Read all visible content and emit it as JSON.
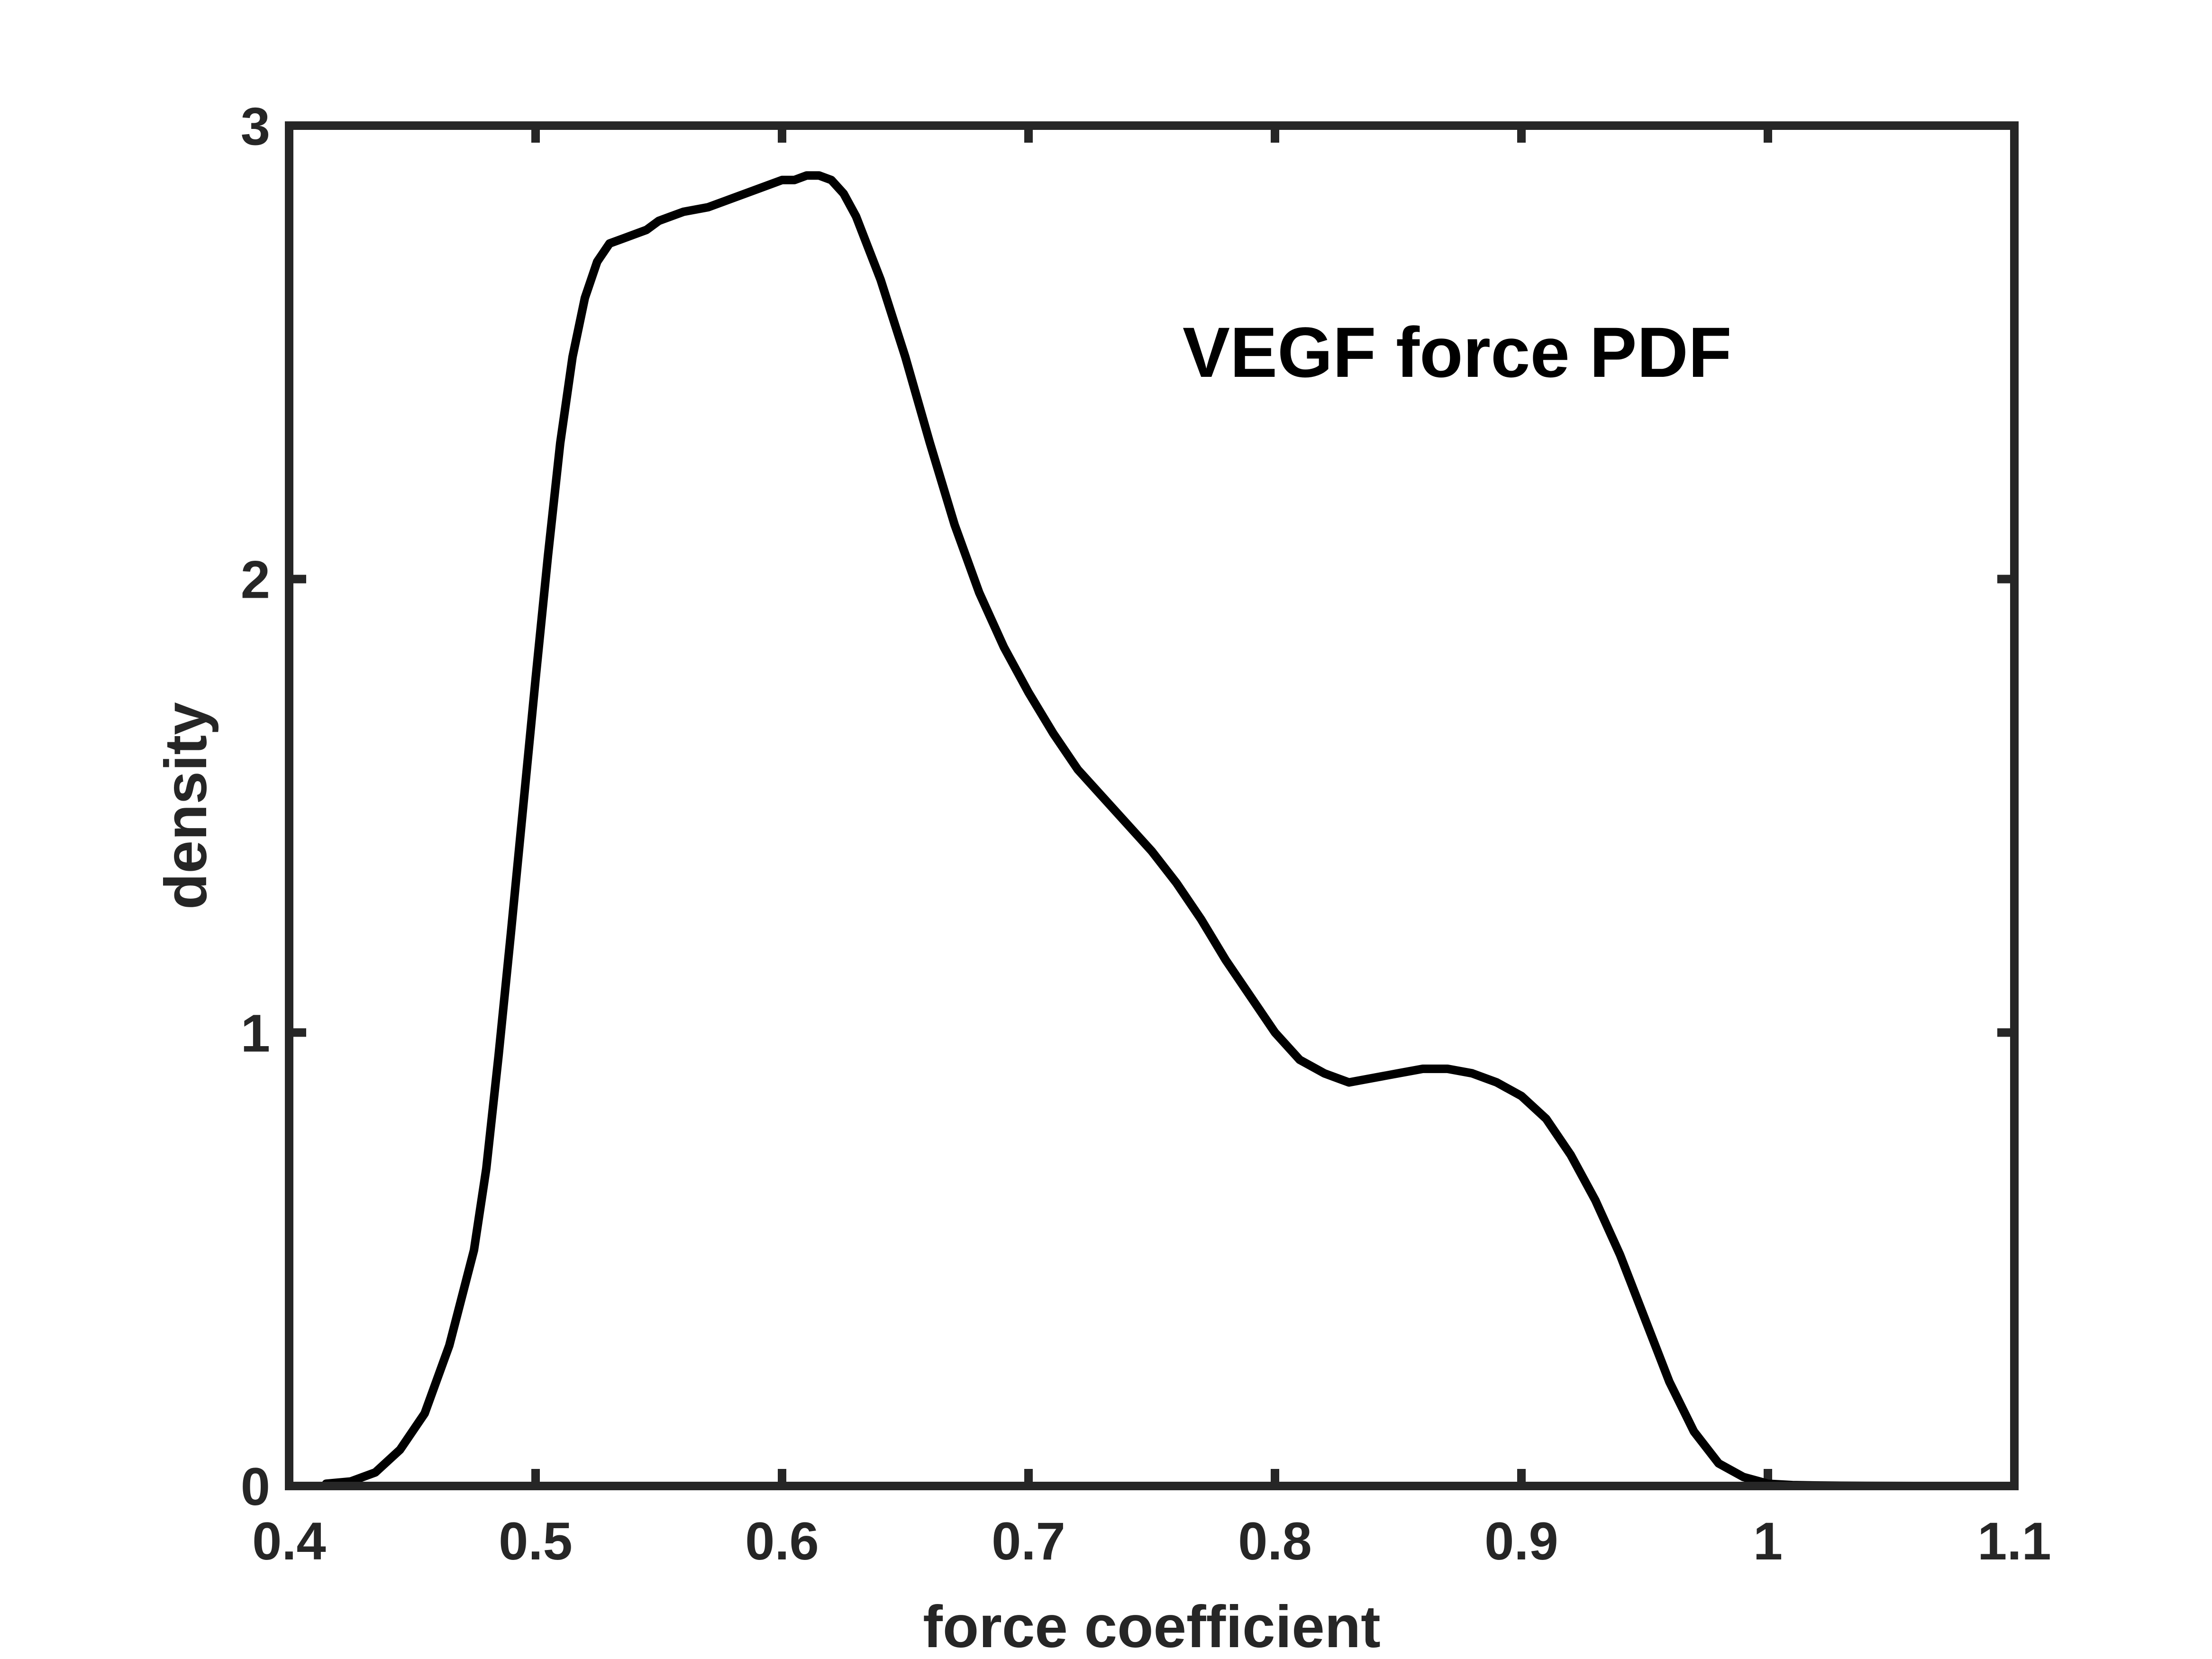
{
  "chart_data": {
    "type": "line",
    "xlabel": "force coefficient",
    "ylabel": "density",
    "annotation": "VEGF force PDF",
    "xlim": [
      0.4,
      1.1
    ],
    "ylim": [
      0,
      3
    ],
    "xticks": [
      0.4,
      0.5,
      0.6,
      0.7,
      0.8,
      0.9,
      1.0,
      1.1
    ],
    "xtick_labels": [
      "0.4",
      "0.5",
      "0.6",
      "0.7",
      "0.8",
      "0.9",
      "1",
      "1.1"
    ],
    "yticks": [
      0,
      1,
      2,
      3
    ],
    "ytick_labels": [
      "0",
      "1",
      "2",
      "3"
    ],
    "grid": false,
    "box": true,
    "line_color": "#000000",
    "axis_color": "#262626",
    "series": [
      {
        "x": [
          0.415,
          0.425,
          0.435,
          0.445,
          0.455,
          0.465,
          0.475,
          0.48,
          0.485,
          0.49,
          0.495,
          0.5,
          0.505,
          0.51,
          0.515,
          0.52,
          0.525,
          0.53,
          0.535,
          0.54,
          0.545,
          0.55,
          0.555,
          0.56,
          0.57,
          0.58,
          0.59,
          0.6,
          0.605,
          0.61,
          0.615,
          0.62,
          0.625,
          0.63,
          0.64,
          0.65,
          0.66,
          0.67,
          0.68,
          0.69,
          0.7,
          0.71,
          0.72,
          0.73,
          0.74,
          0.75,
          0.76,
          0.77,
          0.78,
          0.79,
          0.8,
          0.81,
          0.82,
          0.83,
          0.84,
          0.85,
          0.86,
          0.87,
          0.88,
          0.89,
          0.9,
          0.91,
          0.92,
          0.93,
          0.94,
          0.95,
          0.96,
          0.97,
          0.98,
          0.99,
          1.0,
          1.01,
          1.02,
          1.03,
          1.04,
          1.05,
          1.06,
          1.07,
          1.08
        ],
        "y": [
          0.005,
          0.01,
          0.03,
          0.08,
          0.16,
          0.31,
          0.52,
          0.7,
          0.95,
          1.22,
          1.5,
          1.78,
          2.05,
          2.3,
          2.49,
          2.62,
          2.7,
          2.74,
          2.75,
          2.76,
          2.77,
          2.79,
          2.8,
          2.81,
          2.82,
          2.84,
          2.86,
          2.88,
          2.88,
          2.89,
          2.89,
          2.88,
          2.85,
          2.8,
          2.66,
          2.49,
          2.3,
          2.12,
          1.97,
          1.85,
          1.75,
          1.66,
          1.58,
          1.52,
          1.46,
          1.4,
          1.33,
          1.25,
          1.16,
          1.08,
          1.0,
          0.94,
          0.91,
          0.89,
          0.9,
          0.91,
          0.92,
          0.92,
          0.91,
          0.89,
          0.86,
          0.81,
          0.73,
          0.63,
          0.51,
          0.37,
          0.23,
          0.12,
          0.05,
          0.02,
          0.005,
          0.002,
          0.001,
          0.0005,
          0.0002,
          0.0001,
          5e-05,
          2e-05,
          1e-05
        ]
      }
    ]
  }
}
